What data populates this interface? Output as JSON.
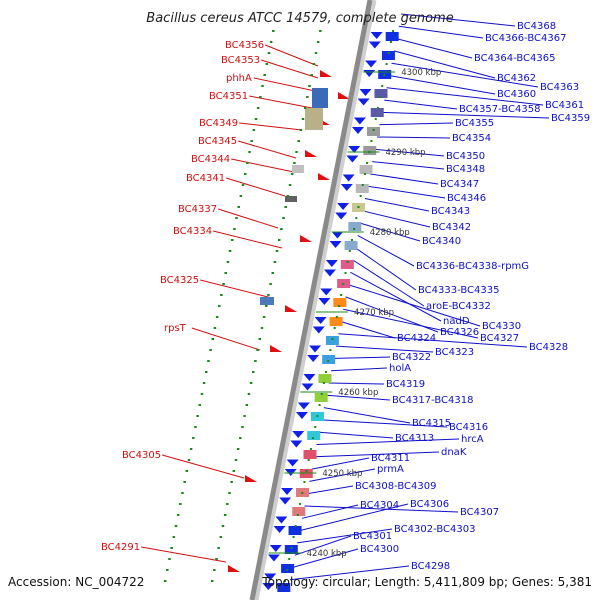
{
  "title": "Bacillus cereus ATCC 14579, complete genome",
  "footer": {
    "accession": "Accession: NC_004722",
    "summary": "Topology: circular; Length: 5,411,809 bp; Genes: 5,381"
  },
  "colors": {
    "forward_label": "#d01010",
    "reverse_label": "#1010c8",
    "backbone": "#8a8a8a",
    "tick": "#1a8a1a"
  },
  "kbp_ticks": [
    "4300 kbp",
    "4290 kbp",
    "4280 kbp",
    "4270 kbp",
    "4260 kbp",
    "4250 kbp",
    "4240 kbp"
  ],
  "forward_labels": [
    "BC4356",
    "BC4353",
    "phhA",
    "BC4351",
    "BC4349",
    "BC4345",
    "BC4344",
    "BC4341",
    "BC4337",
    "BC4334",
    "BC4325",
    "rpsT",
    "BC4305",
    "BC4291"
  ],
  "reverse_labels": [
    "BC4368",
    "BC4366-BC4367",
    "BC4364-BC4365",
    "BC4362",
    "BC4363",
    "BC4360",
    "BC4361",
    "BC4357-BC4358",
    "BC4359",
    "BC4355",
    "BC4354",
    "BC4350",
    "BC4348",
    "BC4347",
    "BC4346",
    "BC4343",
    "BC4342",
    "BC4340",
    "BC4336-BC4338-rpmG",
    "BC4333-BC4335",
    "aroE-BC4332",
    "nadD",
    "BC4330",
    "BC4326",
    "BC4327",
    "BC4324",
    "BC4328",
    "BC4323",
    "BC4322",
    "holA",
    "BC4319",
    "BC4317-BC4318",
    "BC4315",
    "BC4316",
    "BC4313",
    "hrcA",
    "dnaK",
    "BC4311",
    "prmA",
    "BC4308-BC4309",
    "BC4307",
    "BC4304",
    "BC4306",
    "BC4302-BC4303",
    "BC4301",
    "BC4300",
    "BC4298"
  ]
}
